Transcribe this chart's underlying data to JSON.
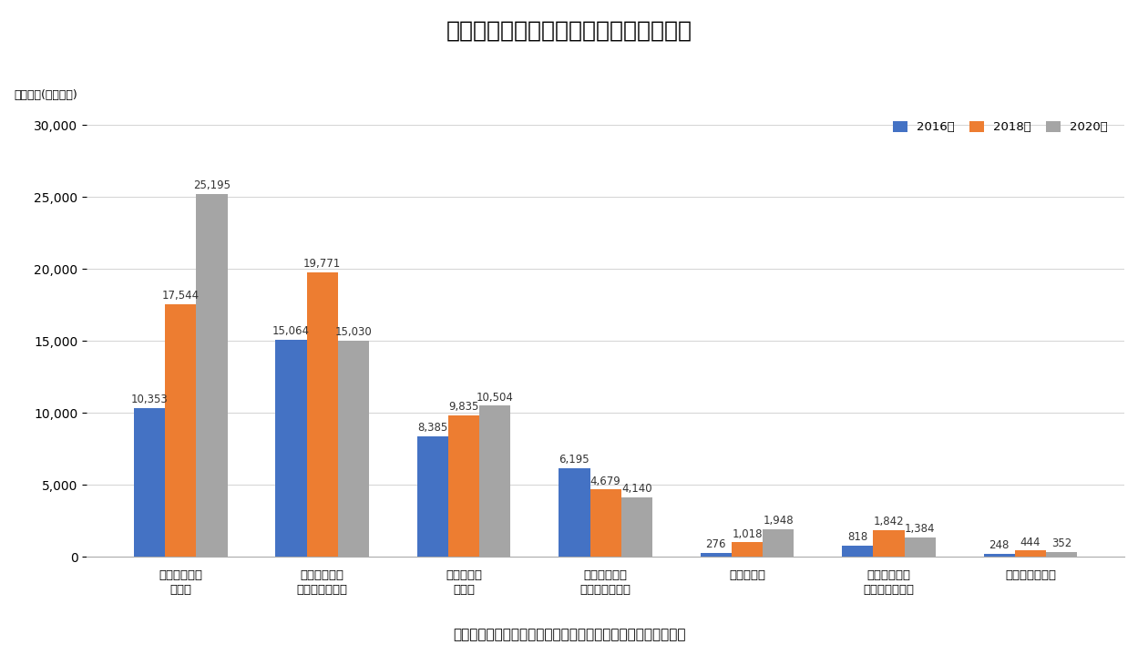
{
  "title": "図表３　投資手法別のＥＳＧ投資の推移",
  "ylabel": "投資残高(十億ドル)",
  "source_note": "（出所）　ＧＳＩＡのデータをもとにニッセイ基礎研究所作成",
  "categories": [
    "インテグレー\nション",
    "ネガティブ・\nスクリーニング",
    "エンゲージ\nメント",
    "規範に基づく\nスクリーニング",
    "テーマ投資",
    "ポジティブ・\nスクリーニング",
    "インパクト投資"
  ],
  "series": {
    "2016年": [
      10353,
      15064,
      8385,
      6195,
      276,
      818,
      248
    ],
    "2018年": [
      17544,
      19771,
      9835,
      4679,
      1018,
      1842,
      444
    ],
    "2020年": [
      25195,
      15030,
      10504,
      4140,
      1948,
      1384,
      352
    ]
  },
  "colors": {
    "2016年": "#4472C4",
    "2018年": "#ED7D31",
    "2020年": "#A5A5A5"
  },
  "ylim": [
    0,
    31000
  ],
  "yticks": [
    0,
    5000,
    10000,
    15000,
    20000,
    25000,
    30000
  ],
  "bar_width": 0.22,
  "legend_labels": [
    "2016年",
    "2018年",
    "2020年"
  ],
  "background_color": "#FFFFFF",
  "title_fontsize": 18,
  "label_fontsize": 9.5,
  "tick_fontsize": 10,
  "ylabel_fontsize": 9,
  "annotation_fontsize": 8.5,
  "source_fontsize": 11
}
